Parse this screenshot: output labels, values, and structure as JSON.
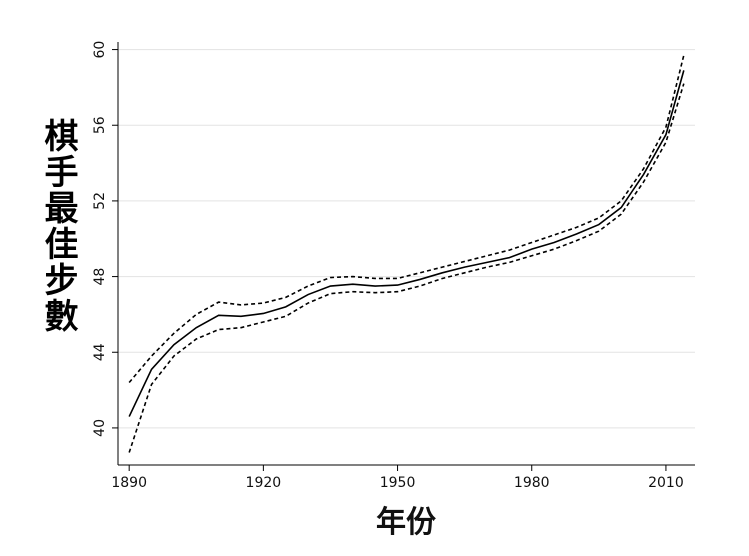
{
  "chart_data": {
    "type": "line",
    "xlabel": "年份",
    "ylabel": "棋手最佳步數",
    "x": [
      1890,
      1895,
      1900,
      1905,
      1910,
      1915,
      1920,
      1925,
      1930,
      1935,
      1940,
      1945,
      1950,
      1955,
      1960,
      1965,
      1970,
      1975,
      1980,
      1985,
      1990,
      1995,
      2000,
      2005,
      2010,
      2014
    ],
    "series": [
      {
        "color": "#000000",
        "dash": false,
        "values": [
          40.6,
          43.1,
          44.4,
          45.3,
          45.95,
          45.9,
          46.05,
          46.4,
          47.05,
          47.5,
          47.6,
          47.5,
          47.55,
          47.85,
          48.2,
          48.5,
          48.75,
          49.0,
          49.45,
          49.8,
          50.25,
          50.75,
          51.65,
          53.4,
          55.5,
          58.9
        ]
      },
      {
        "color": "#000000",
        "dash": true,
        "values": [
          42.4,
          43.8,
          45.0,
          46.0,
          46.65,
          46.5,
          46.6,
          46.9,
          47.5,
          47.95,
          48.0,
          47.9,
          47.9,
          48.2,
          48.5,
          48.8,
          49.1,
          49.4,
          49.8,
          50.2,
          50.6,
          51.1,
          52.0,
          53.7,
          55.9,
          59.7
        ]
      },
      {
        "color": "#000000",
        "dash": true,
        "values": [
          38.7,
          42.3,
          43.8,
          44.7,
          45.2,
          45.3,
          45.6,
          45.9,
          46.6,
          47.1,
          47.2,
          47.15,
          47.2,
          47.5,
          47.9,
          48.2,
          48.5,
          48.75,
          49.1,
          49.45,
          49.9,
          50.4,
          51.3,
          53.0,
          55.1,
          58.2
        ]
      }
    ],
    "xlim": [
      1887.5,
      2016.5
    ],
    "xticks": [
      1890,
      1920,
      1950,
      1980,
      2010
    ],
    "ylim": [
      38.04,
      60.4
    ],
    "yticks": [
      40,
      44,
      48,
      52,
      56,
      60
    ],
    "grid": true
  }
}
